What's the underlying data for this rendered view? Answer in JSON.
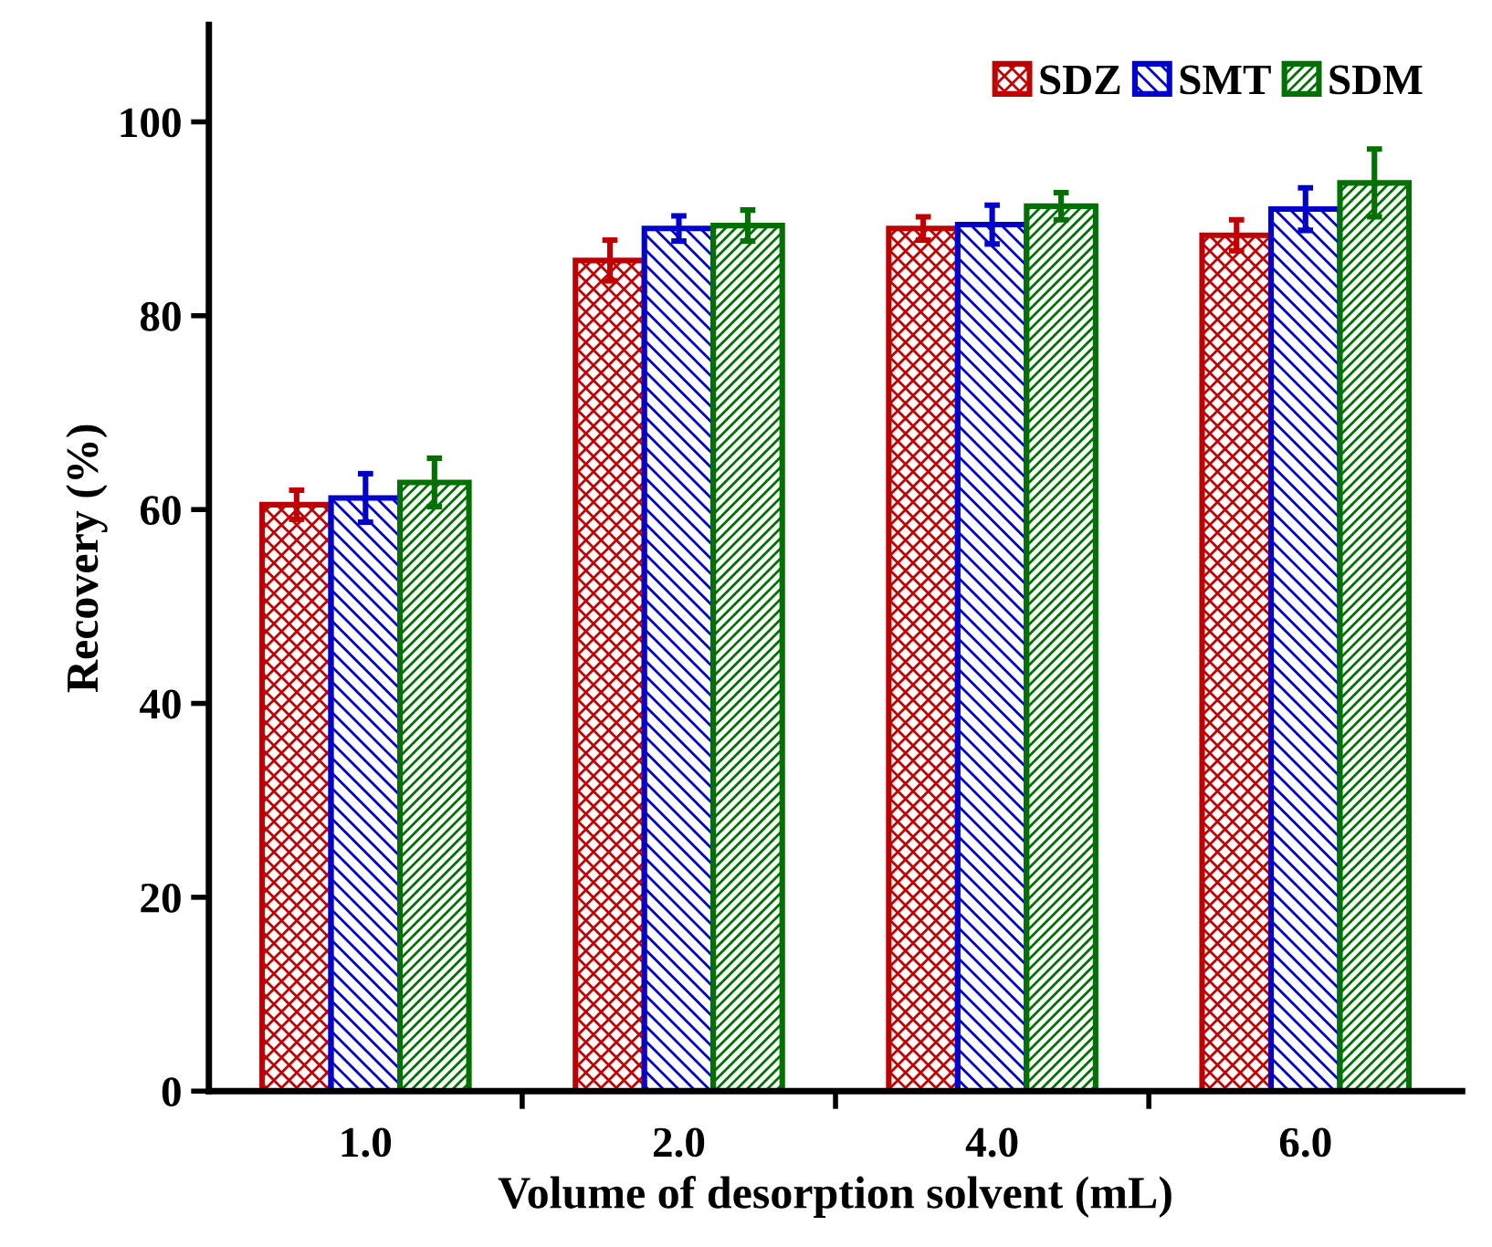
{
  "chart_data": {
    "type": "bar",
    "xlabel": "Volume of desorption solvent (mL)",
    "ylabel": "Recovery (%)",
    "categories": [
      "1.0",
      "2.0",
      "4.0",
      "6.0"
    ],
    "series": [
      {
        "name": "SDZ",
        "color": "#c00000",
        "values": [
          60.5,
          85.7,
          89.0,
          88.3
        ],
        "errors": [
          1.5,
          2.1,
          1.2,
          1.6
        ]
      },
      {
        "name": "SMT",
        "color": "#0000cc",
        "values": [
          61.2,
          89.0,
          89.4,
          91.0
        ],
        "errors": [
          2.5,
          1.3,
          2.0,
          2.2
        ]
      },
      {
        "name": "SDM",
        "color": "#007000",
        "values": [
          62.8,
          89.3,
          91.3,
          93.7
        ],
        "errors": [
          2.5,
          1.6,
          1.4,
          3.5
        ]
      }
    ],
    "ylim": [
      0,
      110
    ],
    "yticks": [
      0,
      20,
      40,
      60,
      80,
      100
    ],
    "legend": "top right",
    "grid": false
  }
}
